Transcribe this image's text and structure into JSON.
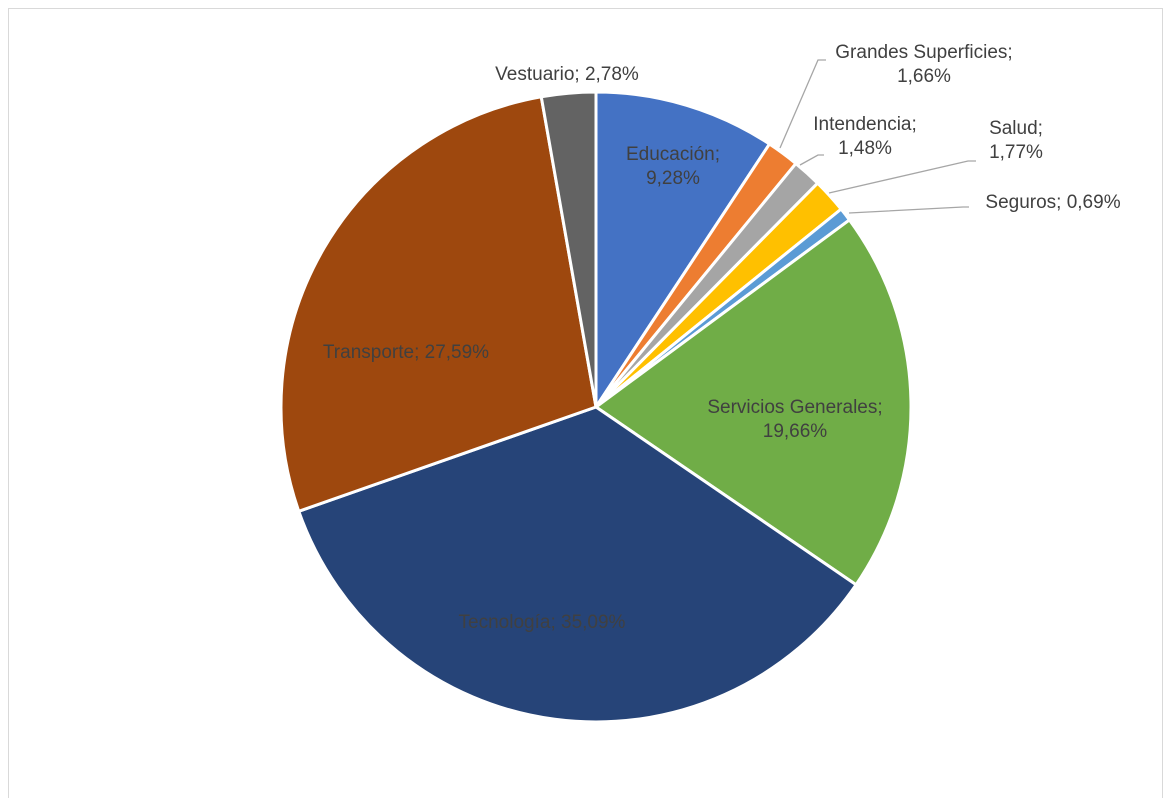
{
  "chart_data": {
    "type": "pie",
    "title": "",
    "start_angle_deg": 0,
    "direction": "clockwise",
    "slices": [
      {
        "label": "Educación; 9,28%",
        "name": "Educación",
        "value": 9.28,
        "color": "#4472C4",
        "label_color": "#404040",
        "label_placement": "inside"
      },
      {
        "label": "Grandes Superficies; 1,66%",
        "name": "Grandes Superficies",
        "value": 1.66,
        "color": "#ED7D31",
        "label_color": "#404040",
        "label_placement": "outside"
      },
      {
        "label": "Intendencia; 1,48%",
        "name": "Intendencia",
        "value": 1.48,
        "color": "#A5A5A5",
        "label_color": "#404040",
        "label_placement": "outside"
      },
      {
        "label": "Salud; 1,77%",
        "name": "Salud",
        "value": 1.77,
        "color": "#FFC000",
        "label_color": "#404040",
        "label_placement": "outside"
      },
      {
        "label": "Seguros; 0,69%",
        "name": "Seguros",
        "value": 0.69,
        "color": "#5B9BD5",
        "label_color": "#404040",
        "label_placement": "outside"
      },
      {
        "label": "Servicios Generales; 19,66%",
        "name": "Servicios Generales",
        "value": 19.66,
        "color": "#70AD47",
        "label_color": "#404040",
        "label_placement": "inside"
      },
      {
        "label": "Tecnología; 35,09%",
        "name": "Tecnología",
        "value": 35.09,
        "color": "#264478",
        "label_color": "#404040",
        "label_placement": "inside"
      },
      {
        "label": "Transporte; 27,59%",
        "name": "Transporte",
        "value": 27.59,
        "color": "#9E480E",
        "label_color": "#404040",
        "label_placement": "inside"
      },
      {
        "label": "Vestuario; 2,78%",
        "name": "Vestuario",
        "value": 2.78,
        "color": "#636363",
        "label_color": "#404040",
        "label_placement": "outside"
      }
    ]
  }
}
